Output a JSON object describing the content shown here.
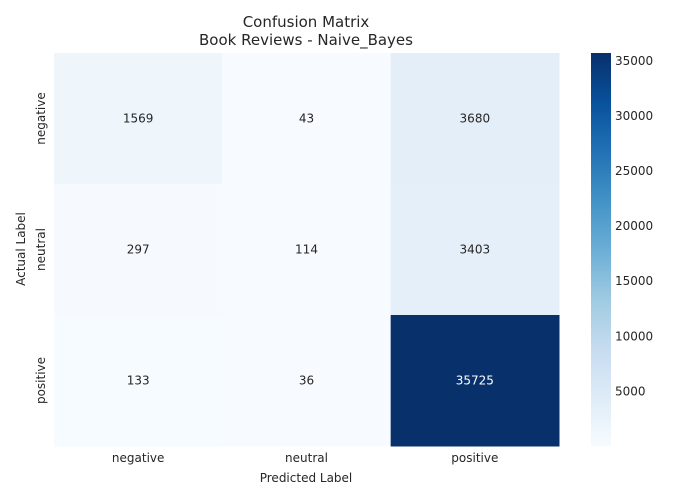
{
  "chart_data": {
    "type": "heatmap",
    "title": "Confusion Matrix",
    "subtitle": "Book Reviews - Naive_Bayes",
    "xlabel": "Predicted Label",
    "ylabel": "Actual Label",
    "x_categories": [
      "negative",
      "neutral",
      "positive"
    ],
    "y_categories": [
      "negative",
      "neutral",
      "positive"
    ],
    "values": [
      [
        1569,
        43,
        3680
      ],
      [
        297,
        114,
        3403
      ],
      [
        133,
        36,
        35725
      ]
    ],
    "colormap": "Blues",
    "colorbar": {
      "ticks": [
        5000,
        10000,
        15000,
        20000,
        25000,
        30000,
        35000
      ],
      "range": [
        36,
        35725
      ]
    },
    "annotation_colors": {
      "light": "#ffffff",
      "dark": "#262626"
    }
  }
}
